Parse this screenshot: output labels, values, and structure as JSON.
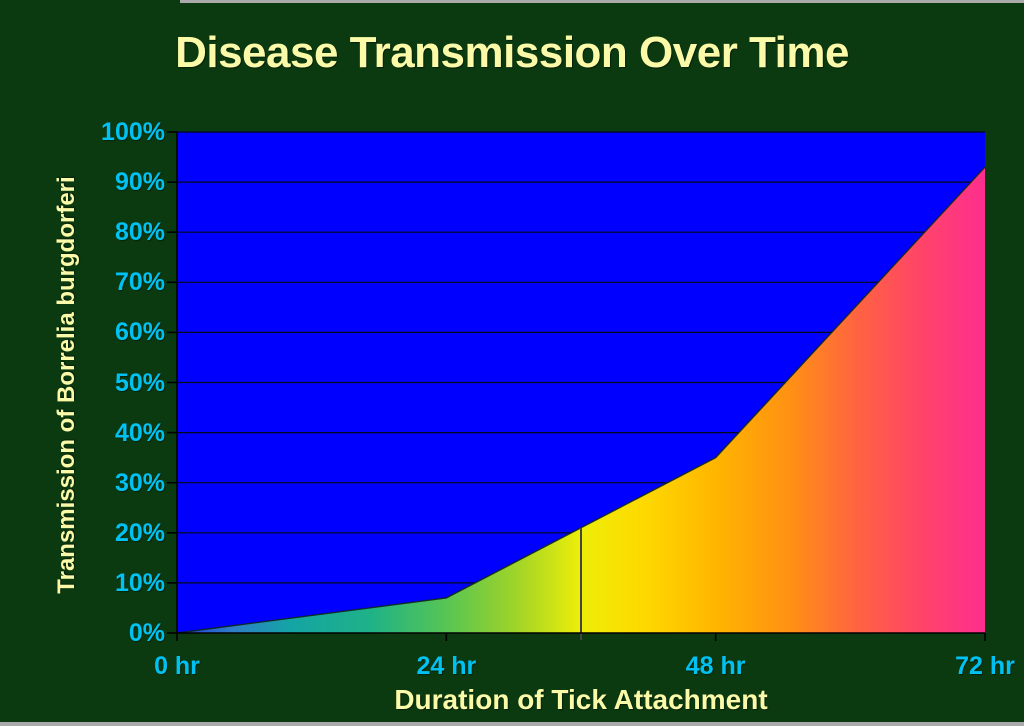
{
  "title": "Disease Transmission Over Time",
  "y_axis": {
    "title": "Transmission of Borrelia burgdorferi",
    "tick_labels": [
      "0%",
      "10%",
      "20%",
      "30%",
      "40%",
      "50%",
      "60%",
      "70%",
      "80%",
      "90%",
      "100%"
    ]
  },
  "x_axis": {
    "title": "Duration of Tick Attachment",
    "tick_labels": [
      "0 hr",
      "24 hr",
      "48 hr",
      "72 hr"
    ]
  },
  "chart_data": {
    "type": "area",
    "title": "Disease Transmission Over Time",
    "xlabel": "Duration of Tick Attachment",
    "ylabel": "Transmission of Borrelia burgdorferi",
    "x": [
      0,
      24,
      48,
      72
    ],
    "values": [
      0,
      7,
      35,
      93
    ],
    "x_unit": "hours",
    "y_unit": "percent",
    "xlim": [
      0,
      72
    ],
    "ylim": [
      0,
      100
    ],
    "x_tick_step": 24,
    "y_tick_step": 10,
    "grid": true,
    "legend": false,
    "marker_line": {
      "x": 36,
      "value": 21
    },
    "gradient_stops": [
      {
        "offset": 0.0,
        "color": "#2040e0"
      },
      {
        "offset": 0.07,
        "color": "#2e7ec6"
      },
      {
        "offset": 0.14,
        "color": "#14a4a4"
      },
      {
        "offset": 0.24,
        "color": "#1fb287"
      },
      {
        "offset": 0.33,
        "color": "#55c455"
      },
      {
        "offset": 0.42,
        "color": "#a0d428"
      },
      {
        "offset": 0.5,
        "color": "#eeee08"
      },
      {
        "offset": 0.58,
        "color": "#fed800"
      },
      {
        "offset": 0.67,
        "color": "#ffb400"
      },
      {
        "offset": 0.76,
        "color": "#ff9014"
      },
      {
        "offset": 0.84,
        "color": "#ff6440"
      },
      {
        "offset": 0.92,
        "color": "#ff4468"
      },
      {
        "offset": 1.0,
        "color": "#fe2e8e"
      }
    ]
  },
  "colors": {
    "background": "#0c3a10",
    "title_text": "#fafaa8",
    "axis_title_text": "#fafaa8",
    "tick_label_text": "#00c2f2",
    "plot_background": "#0000fe",
    "gridline": "#000a18",
    "axis_line": "#000000",
    "curve_outline": "#0d260d",
    "marker_line": "#444444",
    "border_strip": "#aaaaaa"
  }
}
